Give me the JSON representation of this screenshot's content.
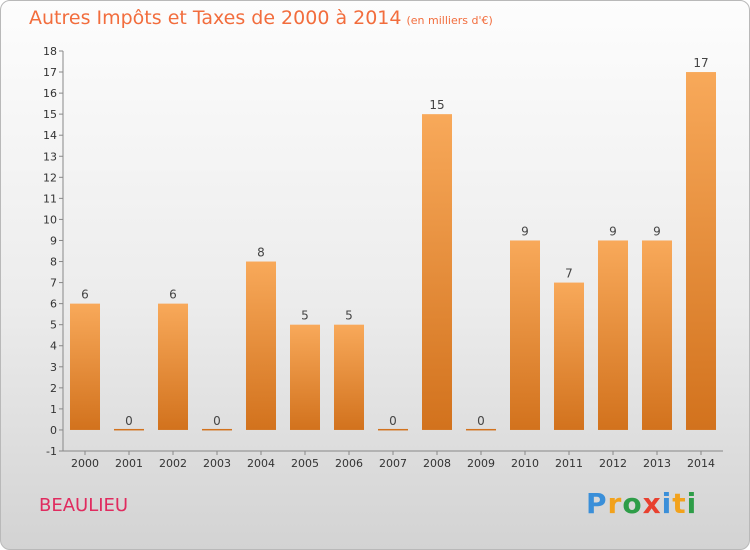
{
  "title": "Autres Impôts et Taxes de 2000 à 2014",
  "subtitle": "(en milliers d'€)",
  "town": "BEAULIEU",
  "brand": {
    "text": "Proxiti",
    "letters": [
      {
        "ch": "P",
        "color": "#3a8fd9"
      },
      {
        "ch": "r",
        "color": "#f2a21c"
      },
      {
        "ch": "o",
        "color": "#2e9d48"
      },
      {
        "ch": "x",
        "color": "#e8402f"
      },
      {
        "ch": "i",
        "color": "#3a8fd9"
      },
      {
        "ch": "t",
        "color": "#f2a21c"
      },
      {
        "ch": "i",
        "color": "#2e9d48"
      }
    ]
  },
  "colors": {
    "bar_light": "#f8a95a",
    "bar_dark": "#d2721d",
    "title": "#f26d3d",
    "town": "#e02b5f"
  },
  "chart_data": {
    "type": "bar",
    "title": "Autres Impôts et Taxes de 2000 à 2014",
    "categories": [
      "2000",
      "2001",
      "2002",
      "2003",
      "2004",
      "2005",
      "2006",
      "2007",
      "2008",
      "2009",
      "2010",
      "2011",
      "2012",
      "2013",
      "2014"
    ],
    "values": [
      6,
      0,
      6,
      0,
      8,
      5,
      5,
      0,
      15,
      0,
      9,
      7,
      9,
      9,
      17
    ],
    "ylim": [
      -1,
      18
    ],
    "yticks": [
      -1,
      0,
      1,
      2,
      3,
      4,
      5,
      6,
      7,
      8,
      9,
      10,
      11,
      12,
      13,
      14,
      15,
      16,
      17,
      18
    ],
    "grid": false,
    "xlabel": "",
    "ylabel": ""
  }
}
